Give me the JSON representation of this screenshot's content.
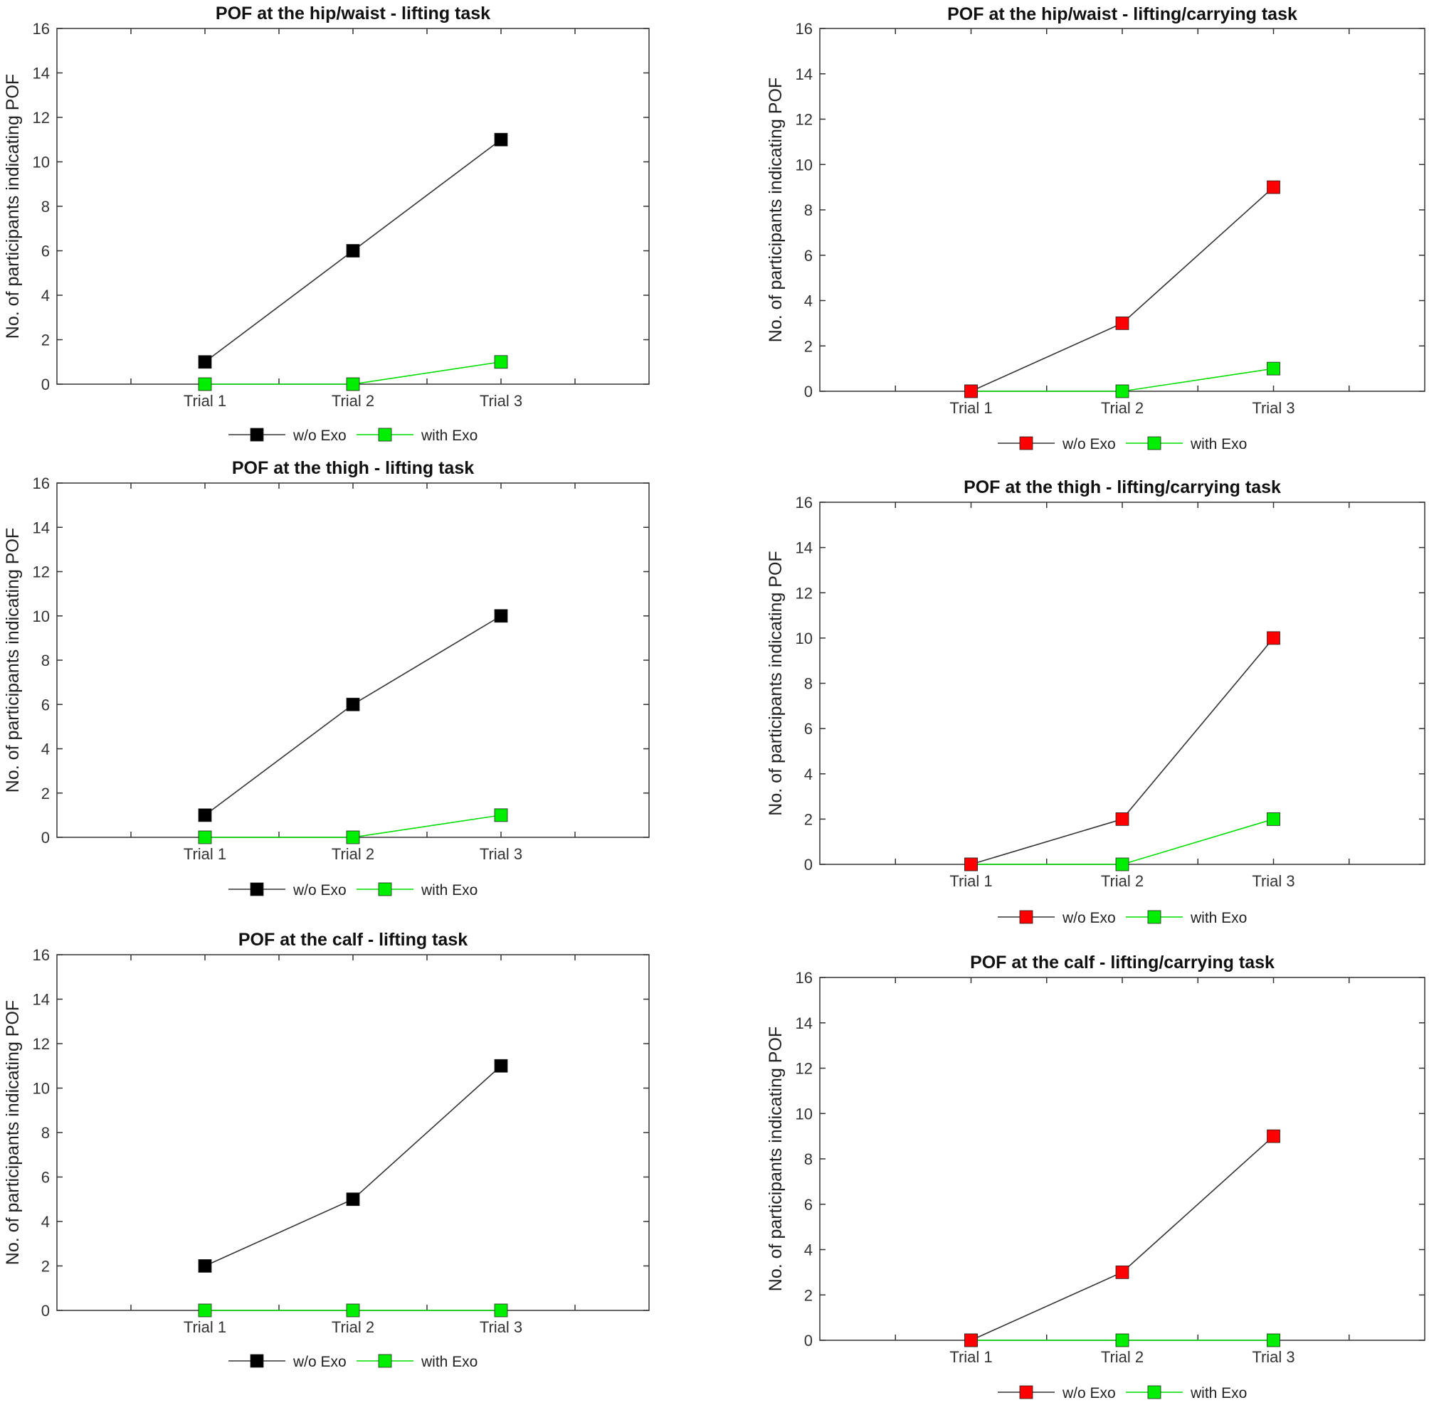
{
  "chart_data": [
    {
      "type": "line",
      "title": "POF at the hip/waist - lifting task",
      "xlabel": "",
      "ylabel": "No. of participants indicating POF",
      "categories": [
        "Trial 1",
        "Trial 2",
        "Trial 3"
      ],
      "ylim": [
        0,
        16
      ],
      "yticks": [
        0,
        2,
        4,
        6,
        8,
        10,
        12,
        14,
        16
      ],
      "series": [
        {
          "name": "w/o Exo",
          "color": "#000000",
          "values": [
            1,
            6,
            11
          ]
        },
        {
          "name": "with Exo",
          "color": "#00ee00",
          "values": [
            0,
            0,
            1
          ]
        }
      ],
      "legend": "bottom-center",
      "grid": false
    },
    {
      "type": "line",
      "title": "POF at the hip/waist - lifting/carrying task",
      "xlabel": "",
      "ylabel": "No. of participants indicating POF",
      "categories": [
        "Trial 1",
        "Trial 2",
        "Trial 3"
      ],
      "ylim": [
        0,
        16
      ],
      "yticks": [
        0,
        2,
        4,
        6,
        8,
        10,
        12,
        14,
        16
      ],
      "series": [
        {
          "name": "w/o Exo",
          "color": "#ff0000",
          "values": [
            0,
            3,
            9
          ]
        },
        {
          "name": "with Exo",
          "color": "#00ee00",
          "values": [
            0,
            0,
            1
          ]
        }
      ],
      "legend": "bottom-center",
      "grid": false
    },
    {
      "type": "line",
      "title": "POF at the thigh - lifting task",
      "xlabel": "",
      "ylabel": "No. of participants indicating POF",
      "categories": [
        "Trial 1",
        "Trial 2",
        "Trial 3"
      ],
      "ylim": [
        0,
        16
      ],
      "yticks": [
        0,
        2,
        4,
        6,
        8,
        10,
        12,
        14,
        16
      ],
      "series": [
        {
          "name": "w/o Exo",
          "color": "#000000",
          "values": [
            1,
            6,
            10
          ]
        },
        {
          "name": "with Exo",
          "color": "#00ee00",
          "values": [
            0,
            0,
            1
          ]
        }
      ],
      "legend": "bottom-center",
      "grid": false
    },
    {
      "type": "line",
      "title": "POF at the thigh - lifting/carrying task",
      "xlabel": "",
      "ylabel": "No. of participants indicating POF",
      "categories": [
        "Trial 1",
        "Trial 2",
        "Trial 3"
      ],
      "ylim": [
        0,
        16
      ],
      "yticks": [
        0,
        2,
        4,
        6,
        8,
        10,
        12,
        14,
        16
      ],
      "series": [
        {
          "name": "w/o Exo",
          "color": "#ff0000",
          "values": [
            0,
            2,
            10
          ]
        },
        {
          "name": "with Exo",
          "color": "#00ee00",
          "values": [
            0,
            0,
            2
          ]
        }
      ],
      "legend": "bottom-center",
      "grid": false
    },
    {
      "type": "line",
      "title": "POF at the calf - lifting task",
      "xlabel": "",
      "ylabel": "No. of participants indicating POF",
      "categories": [
        "Trial 1",
        "Trial 2",
        "Trial 3"
      ],
      "ylim": [
        0,
        16
      ],
      "yticks": [
        0,
        2,
        4,
        6,
        8,
        10,
        12,
        14,
        16
      ],
      "series": [
        {
          "name": "w/o Exo",
          "color": "#000000",
          "values": [
            2,
            5,
            11
          ]
        },
        {
          "name": "with Exo",
          "color": "#00ee00",
          "values": [
            0,
            0,
            0
          ]
        }
      ],
      "legend": "bottom-center",
      "grid": false
    },
    {
      "type": "line",
      "title": "POF at the calf - lifting/carrying task",
      "xlabel": "",
      "ylabel": "No. of participants indicating POF",
      "categories": [
        "Trial 1",
        "Trial 2",
        "Trial 3"
      ],
      "ylim": [
        0,
        16
      ],
      "yticks": [
        0,
        2,
        4,
        6,
        8,
        10,
        12,
        14,
        16
      ],
      "series": [
        {
          "name": "w/o Exo",
          "color": "#ff0000",
          "values": [
            0,
            3,
            9
          ]
        },
        {
          "name": "with Exo",
          "color": "#00ee00",
          "values": [
            0,
            0,
            0
          ]
        }
      ],
      "legend": "bottom-center",
      "grid": false
    }
  ]
}
